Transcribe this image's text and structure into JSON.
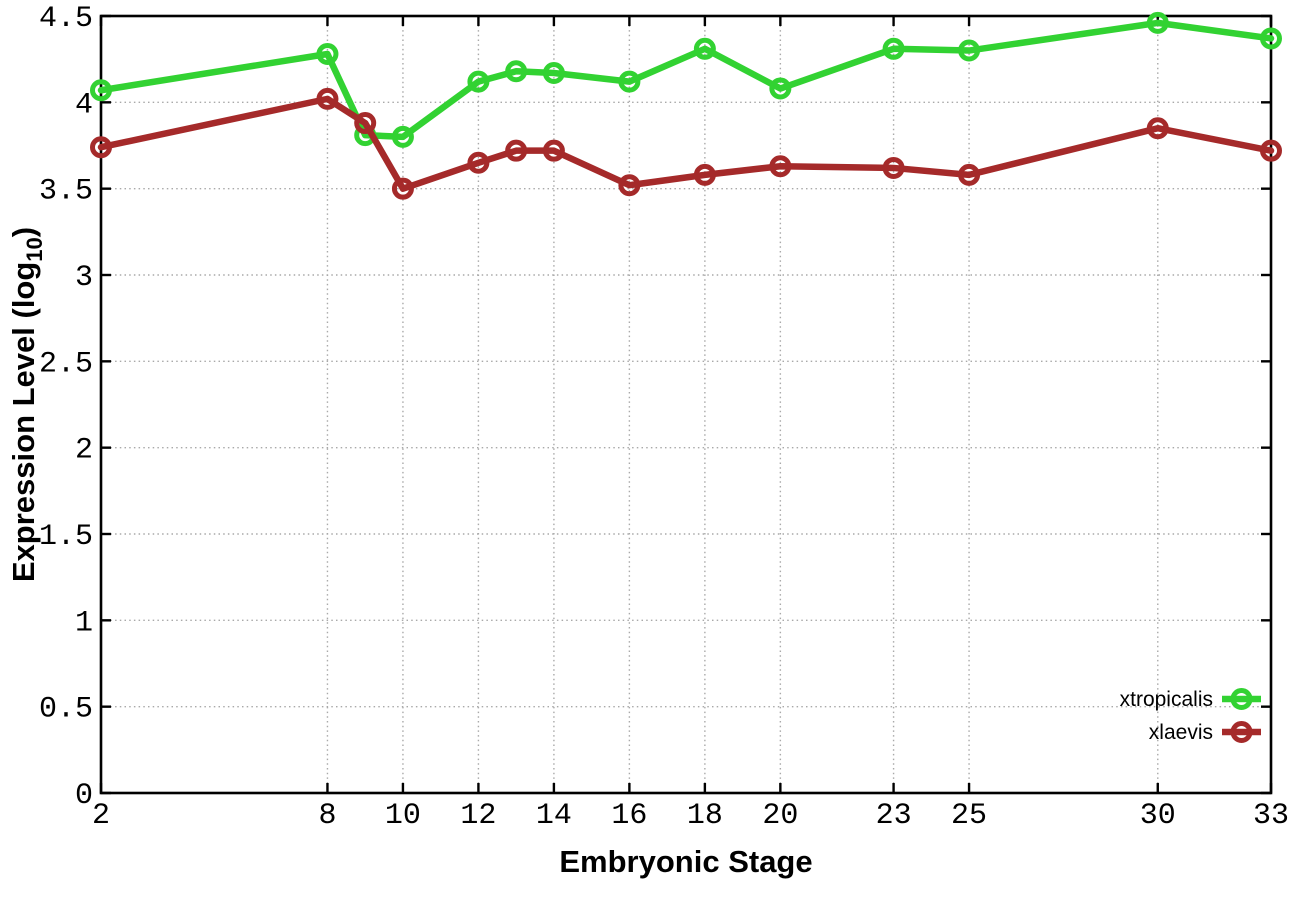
{
  "chart_data": {
    "type": "line",
    "title": "",
    "xlabel": "Embryonic Stage",
    "ylabel": "Expression Level (log10)",
    "ylabel_parts": {
      "pre": "Expression Level (log",
      "sub": "10",
      "post": ")"
    },
    "xlim": [
      2,
      33
    ],
    "ylim": [
      0,
      4.5
    ],
    "xticks": [
      2,
      8,
      10,
      12,
      14,
      16,
      18,
      20,
      23,
      25,
      30,
      33
    ],
    "yticks": [
      0,
      0.5,
      1,
      1.5,
      2,
      2.5,
      3,
      3.5,
      4,
      4.5
    ],
    "grid": true,
    "legend_position": "bottom-right",
    "x": [
      2,
      8,
      9,
      10,
      12,
      13,
      14,
      16,
      18,
      20,
      23,
      25,
      30,
      33
    ],
    "series": [
      {
        "name": "xtropicalis",
        "color": "#32d232",
        "values": [
          4.07,
          4.28,
          3.81,
          3.8,
          4.12,
          4.18,
          4.17,
          4.12,
          4.31,
          4.08,
          4.31,
          4.3,
          4.46,
          4.37
        ]
      },
      {
        "name": "xlaevis",
        "color": "#a52a2a",
        "values": [
          3.74,
          4.02,
          3.88,
          3.5,
          3.65,
          3.72,
          3.72,
          3.52,
          3.58,
          3.63,
          3.62,
          3.58,
          3.85,
          3.72
        ]
      }
    ],
    "grid_color": "#a9a9a9",
    "axis_color": "#000000",
    "background": "#ffffff"
  }
}
